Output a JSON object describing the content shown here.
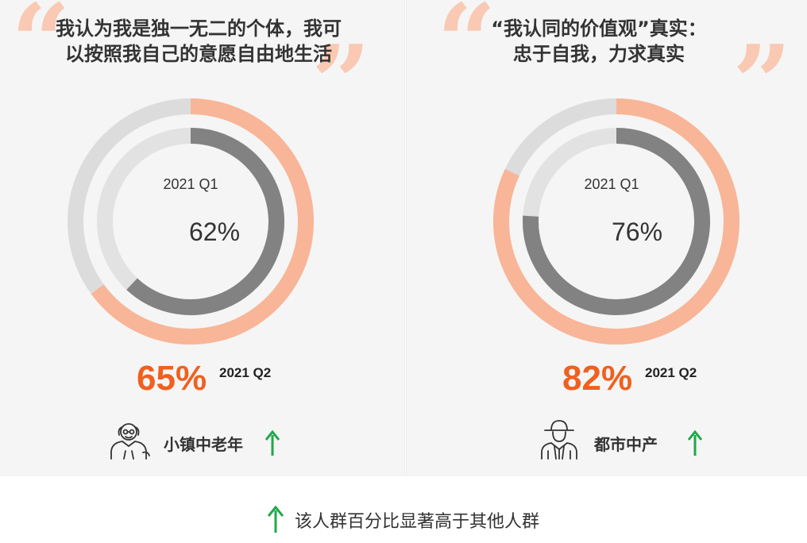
{
  "colors": {
    "q2_ring": "#f9b597",
    "q1_ring": "#828282",
    "track_outer": "#dcdcdc",
    "track_inner": "#e2e2e2",
    "accent": "#f0601f",
    "arrow": "#1fa84a"
  },
  "panels": [
    {
      "heading_lines": [
        "我认为我是独一无二的个体，我可",
        "以按照我自己的意愿自由地生活"
      ],
      "q1_label": "2021 Q1",
      "q1_value_text": "62%",
      "q2_value_text": "65%",
      "q2_label": "2021 Q2",
      "persona_label": "小镇中老年",
      "persona_icon": "elderly-person-icon"
    },
    {
      "heading_lines": [
        "“我认同的价值观”真实：",
        "忠于自我，力求真实"
      ],
      "q1_label": "2021 Q1",
      "q1_value_text": "76%",
      "q2_value_text": "82%",
      "q2_label": "2021 Q2",
      "persona_label": "都市中产",
      "persona_icon": "person-with-hat-icon"
    }
  ],
  "footnote": {
    "text": "该人群百分比显著高于其他人群",
    "icon": "up-arrow-icon"
  },
  "chart_data": [
    {
      "type": "donut",
      "title": "我认为我是独一无二的个体，我可以按照我自己的意愿自由地生活",
      "series": [
        {
          "name": "2021 Q1",
          "value": 62
        },
        {
          "name": "2021 Q2",
          "value": 65
        }
      ],
      "group": "小镇中老年"
    },
    {
      "type": "donut",
      "title": "“我认同的价值观”真实：忠于自我，力求真实",
      "series": [
        {
          "name": "2021 Q1",
          "value": 76
        },
        {
          "name": "2021 Q2",
          "value": 82
        }
      ],
      "group": "都市中产"
    }
  ]
}
